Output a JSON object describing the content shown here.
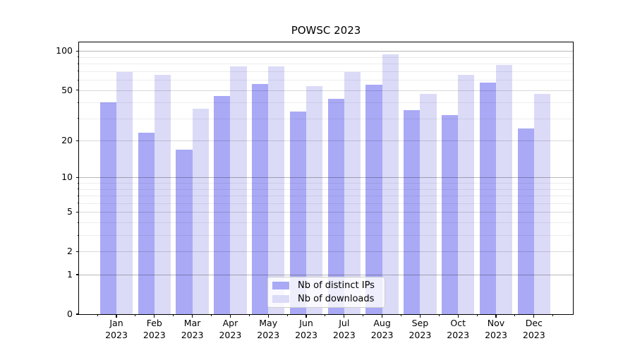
{
  "title": "POWSC 2023",
  "chart_data": {
    "type": "bar",
    "title": "POWSC 2023",
    "categories": [
      "Jan 2023",
      "Feb 2023",
      "Mar 2023",
      "Apr 2023",
      "May 2023",
      "Jun 2023",
      "Jul 2023",
      "Aug 2023",
      "Sep 2023",
      "Oct 2023",
      "Nov 2023",
      "Dec 2023"
    ],
    "x_tick_month_line": [
      "Jan",
      "Feb",
      "Mar",
      "Apr",
      "May",
      "Jun",
      "Jul",
      "Aug",
      "Sep",
      "Oct",
      "Nov",
      "Dec"
    ],
    "x_tick_year_line": "2023",
    "series": [
      {
        "name": "Nb of distinct IPs",
        "color": "#a9a9f6",
        "values": [
          40,
          23,
          17,
          45,
          56,
          34,
          43,
          55,
          35,
          32,
          57,
          25
        ]
      },
      {
        "name": "Nb of downloads",
        "color": "#dbdbf8",
        "values": [
          69,
          66,
          36,
          76,
          76,
          54,
          69,
          94,
          47,
          66,
          78,
          47
        ]
      }
    ],
    "yscale": "log1p",
    "ylim": [
      0,
      116
    ],
    "yticks": [
      100,
      50,
      20,
      10,
      5,
      2,
      1,
      0
    ],
    "ytick_decades": [
      100,
      10,
      1
    ],
    "yticks_minor": [
      90,
      80,
      70,
      60,
      40,
      30,
      9,
      8,
      7,
      6,
      4,
      3
    ],
    "grid": true,
    "legend": {
      "position": "lower center"
    },
    "colors": {
      "grid_decade": "rgba(0,0,0,0.28)",
      "grid_labeled": "rgba(0,0,0,0.15)",
      "grid_minor": "rgba(0,0,0,0.07)"
    }
  }
}
